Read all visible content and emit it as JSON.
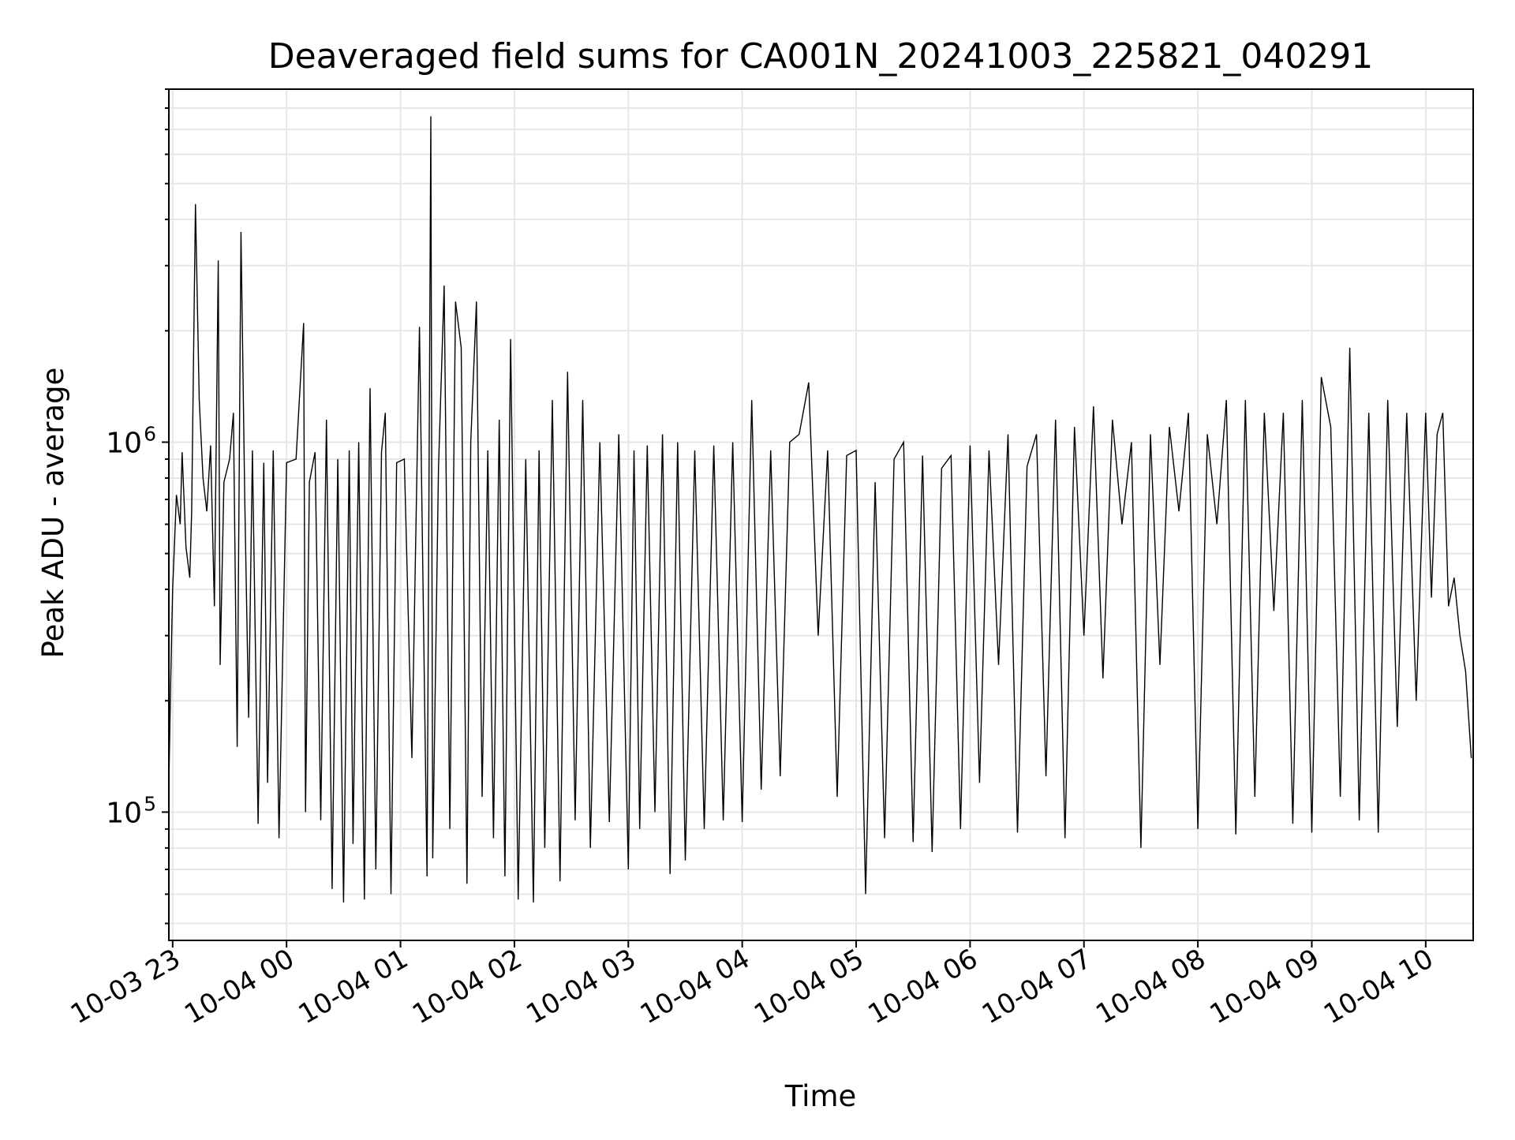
{
  "chart_data": {
    "type": "line",
    "title": "Deaveraged field sums for CA001N_20241003_225821_040291",
    "xlabel": "Time",
    "ylabel": "Peak ADU - average",
    "yscale": "log",
    "ylim": [
      45000,
      9000000
    ],
    "xlim": [
      "2024-10-03 22:58",
      "2024-10-04 10:25"
    ],
    "x_ticks": [
      {
        "at": "2024-10-03 23:00",
        "label": "10-03 23"
      },
      {
        "at": "2024-10-04 00:00",
        "label": "10-04 00"
      },
      {
        "at": "2024-10-04 01:00",
        "label": "10-04 01"
      },
      {
        "at": "2024-10-04 02:00",
        "label": "10-04 02"
      },
      {
        "at": "2024-10-04 03:00",
        "label": "10-04 03"
      },
      {
        "at": "2024-10-04 04:00",
        "label": "10-04 04"
      },
      {
        "at": "2024-10-04 05:00",
        "label": "10-04 05"
      },
      {
        "at": "2024-10-04 06:00",
        "label": "10-04 06"
      },
      {
        "at": "2024-10-04 07:00",
        "label": "10-04 07"
      },
      {
        "at": "2024-10-04 08:00",
        "label": "10-04 08"
      },
      {
        "at": "2024-10-04 09:00",
        "label": "10-04 09"
      },
      {
        "at": "2024-10-04 10:00",
        "label": "10-04 10"
      }
    ],
    "y_ticks": [
      {
        "value": 100000,
        "label": "10",
        "exponent": "5"
      },
      {
        "value": 1000000,
        "label": "10",
        "exponent": "6"
      }
    ],
    "grid": true,
    "line_color": "#000000",
    "series": [
      {
        "x": [
          "2024-10-03 22:58",
          "2024-10-03 22:59",
          "2024-10-03 23:00",
          "2024-10-03 23:02",
          "2024-10-03 23:04",
          "2024-10-03 23:05",
          "2024-10-03 23:07",
          "2024-10-03 23:09",
          "2024-10-03 23:10",
          "2024-10-03 23:11",
          "2024-10-03 23:12",
          "2024-10-03 23:14",
          "2024-10-03 23:16",
          "2024-10-03 23:18",
          "2024-10-03 23:20",
          "2024-10-03 23:22",
          "2024-10-03 23:24",
          "2024-10-03 23:25",
          "2024-10-03 23:27",
          "2024-10-03 23:30",
          "2024-10-03 23:32",
          "2024-10-03 23:34",
          "2024-10-03 23:36",
          "2024-10-03 23:38",
          "2024-10-03 23:40",
          "2024-10-03 23:42",
          "2024-10-03 23:45",
          "2024-10-03 23:48",
          "2024-10-03 23:50",
          "2024-10-03 23:53",
          "2024-10-03 23:56",
          "2024-10-04 00:00",
          "2024-10-04 00:05",
          "2024-10-04 00:09",
          "2024-10-04 00:10",
          "2024-10-04 00:12",
          "2024-10-04 00:15",
          "2024-10-04 00:18",
          "2024-10-04 00:21",
          "2024-10-04 00:24",
          "2024-10-04 00:27",
          "2024-10-04 00:30",
          "2024-10-04 00:33",
          "2024-10-04 00:35",
          "2024-10-04 00:38",
          "2024-10-04 00:41",
          "2024-10-04 00:44",
          "2024-10-04 00:47",
          "2024-10-04 00:50",
          "2024-10-04 00:52",
          "2024-10-04 00:55",
          "2024-10-04 00:58",
          "2024-10-04 01:02",
          "2024-10-04 01:06",
          "2024-10-04 01:10",
          "2024-10-04 01:14",
          "2024-10-04 01:16",
          "2024-10-04 01:17",
          "2024-10-04 01:20",
          "2024-10-04 01:23",
          "2024-10-04 01:26",
          "2024-10-04 01:29",
          "2024-10-04 01:32",
          "2024-10-04 01:35",
          "2024-10-04 01:37",
          "2024-10-04 01:40",
          "2024-10-04 01:43",
          "2024-10-04 01:46",
          "2024-10-04 01:49",
          "2024-10-04 01:52",
          "2024-10-04 01:55",
          "2024-10-04 01:58",
          "2024-10-04 02:02",
          "2024-10-04 02:06",
          "2024-10-04 02:10",
          "2024-10-04 02:13",
          "2024-10-04 02:16",
          "2024-10-04 02:20",
          "2024-10-04 02:24",
          "2024-10-04 02:28",
          "2024-10-04 02:32",
          "2024-10-04 02:36",
          "2024-10-04 02:40",
          "2024-10-04 02:45",
          "2024-10-04 02:50",
          "2024-10-04 02:55",
          "2024-10-04 03:00",
          "2024-10-04 03:03",
          "2024-10-04 03:06",
          "2024-10-04 03:10",
          "2024-10-04 03:14",
          "2024-10-04 03:18",
          "2024-10-04 03:22",
          "2024-10-04 03:26",
          "2024-10-04 03:30",
          "2024-10-04 03:35",
          "2024-10-04 03:40",
          "2024-10-04 03:45",
          "2024-10-04 03:50",
          "2024-10-04 03:55",
          "2024-10-04 04:00",
          "2024-10-04 04:05",
          "2024-10-04 04:10",
          "2024-10-04 04:15",
          "2024-10-04 04:20",
          "2024-10-04 04:25",
          "2024-10-04 04:30",
          "2024-10-04 04:35",
          "2024-10-04 04:40",
          "2024-10-04 04:45",
          "2024-10-04 04:50",
          "2024-10-04 04:55",
          "2024-10-04 05:00",
          "2024-10-04 05:05",
          "2024-10-04 05:10",
          "2024-10-04 05:15",
          "2024-10-04 05:20",
          "2024-10-04 05:25",
          "2024-10-04 05:30",
          "2024-10-04 05:35",
          "2024-10-04 05:40",
          "2024-10-04 05:45",
          "2024-10-04 05:50",
          "2024-10-04 05:55",
          "2024-10-04 06:00",
          "2024-10-04 06:05",
          "2024-10-04 06:10",
          "2024-10-04 06:15",
          "2024-10-04 06:20",
          "2024-10-04 06:25",
          "2024-10-04 06:30",
          "2024-10-04 06:35",
          "2024-10-04 06:40",
          "2024-10-04 06:45",
          "2024-10-04 06:50",
          "2024-10-04 06:55",
          "2024-10-04 07:00",
          "2024-10-04 07:05",
          "2024-10-04 07:10",
          "2024-10-04 07:15",
          "2024-10-04 07:20",
          "2024-10-04 07:25",
          "2024-10-04 07:30",
          "2024-10-04 07:35",
          "2024-10-04 07:40",
          "2024-10-04 07:45",
          "2024-10-04 07:50",
          "2024-10-04 07:55",
          "2024-10-04 08:00",
          "2024-10-04 08:05",
          "2024-10-04 08:10",
          "2024-10-04 08:15",
          "2024-10-04 08:20",
          "2024-10-04 08:25",
          "2024-10-04 08:30",
          "2024-10-04 08:35",
          "2024-10-04 08:40",
          "2024-10-04 08:45",
          "2024-10-04 08:50",
          "2024-10-04 08:55",
          "2024-10-04 09:00",
          "2024-10-04 09:05",
          "2024-10-04 09:10",
          "2024-10-04 09:15",
          "2024-10-04 09:20",
          "2024-10-04 09:25",
          "2024-10-04 09:30",
          "2024-10-04 09:35",
          "2024-10-04 09:40",
          "2024-10-04 09:45",
          "2024-10-04 09:50",
          "2024-10-04 09:55",
          "2024-10-04 10:00",
          "2024-10-04 10:03",
          "2024-10-04 10:06",
          "2024-10-04 10:09",
          "2024-10-04 10:12",
          "2024-10-04 10:15",
          "2024-10-04 10:18",
          "2024-10-04 10:21",
          "2024-10-04 10:24"
        ],
        "values": [
          120000,
          230000,
          400000,
          720000,
          600000,
          940000,
          520000,
          430000,
          650000,
          1700000,
          4400000,
          1300000,
          800000,
          650000,
          980000,
          360000,
          3100000,
          250000,
          780000,
          900000,
          1200000,
          150000,
          3700000,
          700000,
          180000,
          950000,
          93000,
          880000,
          120000,
          950000,
          85000,
          880000,
          900000,
          2100000,
          100000,
          780000,
          940000,
          95000,
          1150000,
          62000,
          900000,
          57000,
          950000,
          82000,
          1000000,
          58000,
          1400000,
          70000,
          940000,
          1200000,
          60000,
          880000,
          900000,
          140000,
          2050000,
          67000,
          7600000,
          75000,
          850000,
          2650000,
          90000,
          2400000,
          1800000,
          64000,
          1000000,
          2400000,
          110000,
          950000,
          85000,
          1150000,
          67000,
          1900000,
          58000,
          900000,
          57000,
          950000,
          80000,
          1300000,
          65000,
          1550000,
          95000,
          1300000,
          80000,
          1000000,
          94000,
          1050000,
          70000,
          950000,
          90000,
          980000,
          100000,
          1050000,
          68000,
          1000000,
          74000,
          950000,
          90000,
          980000,
          95000,
          1000000,
          94000,
          1300000,
          115000,
          950000,
          125000,
          1000000,
          1050000,
          1450000,
          300000,
          950000,
          110000,
          920000,
          950000,
          60000,
          780000,
          85000,
          900000,
          1000000,
          83000,
          920000,
          78000,
          850000,
          920000,
          90000,
          980000,
          120000,
          950000,
          250000,
          1050000,
          88000,
          860000,
          1050000,
          125000,
          1150000,
          85000,
          1100000,
          300000,
          1250000,
          230000,
          1150000,
          600000,
          1000000,
          80000,
          1050000,
          250000,
          1100000,
          650000,
          1200000,
          90000,
          1050000,
          600000,
          1300000,
          87000,
          1300000,
          110000,
          1200000,
          350000,
          1200000,
          93000,
          1300000,
          88000,
          1500000,
          1100000,
          110000,
          1800000,
          95000,
          1200000,
          88000,
          1300000,
          170000,
          1200000,
          200000,
          1200000,
          380000,
          1050000,
          1200000,
          360000,
          430000,
          300000,
          240000,
          140000
        ]
      }
    ]
  }
}
